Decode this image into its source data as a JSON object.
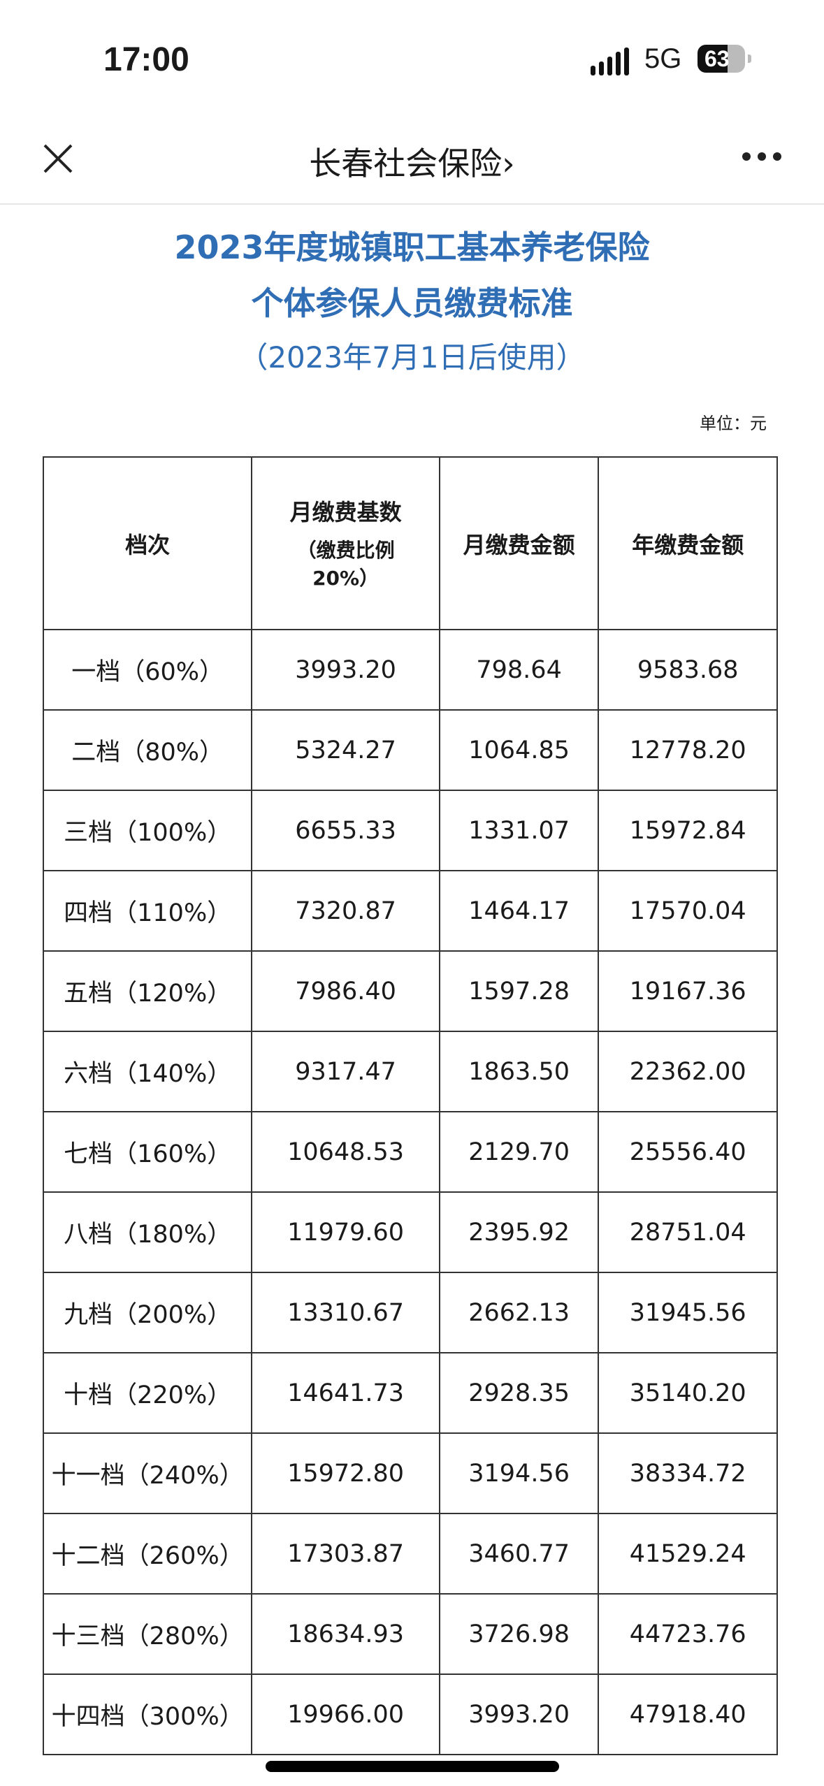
{
  "status_bar": {
    "time": "17:00",
    "network": "5G",
    "battery": "63",
    "battery_level": 0.63
  },
  "navbar": {
    "title": "长春社会保险",
    "chevron": "›",
    "close_icon": "close-icon",
    "more_icon": "more-icon"
  },
  "document": {
    "title_line1": "2023年度城镇职工基本养老保险",
    "title_line2": "个体参保人员缴费标准",
    "subtitle": "（2023年7月1日后使用）",
    "unit": "单位：元",
    "accent_color": "#2f6db5"
  },
  "table": {
    "headers": {
      "grade": "档次",
      "base": "月缴费基数",
      "base_note_1": "（缴费比例",
      "base_note_2": "20%）",
      "monthly": "月缴费金额",
      "yearly": "年缴费金额"
    },
    "rows": [
      [
        "一档（60%）",
        "3993.20",
        "798.64",
        "9583.68"
      ],
      [
        "二档（80%）",
        "5324.27",
        "1064.85",
        "12778.20"
      ],
      [
        "三档（100%）",
        "6655.33",
        "1331.07",
        "15972.84"
      ],
      [
        "四档（110%）",
        "7320.87",
        "1464.17",
        "17570.04"
      ],
      [
        "五档（120%）",
        "7986.40",
        "1597.28",
        "19167.36"
      ],
      [
        "六档（140%）",
        "9317.47",
        "1863.50",
        "22362.00"
      ],
      [
        "七档（160%）",
        "10648.53",
        "2129.70",
        "25556.40"
      ],
      [
        "八档（180%）",
        "11979.60",
        "2395.92",
        "28751.04"
      ],
      [
        "九档（200%）",
        "13310.67",
        "2662.13",
        "31945.56"
      ],
      [
        "十档（220%）",
        "14641.73",
        "2928.35",
        "35140.20"
      ],
      [
        "十一档（240%）",
        "15972.80",
        "3194.56",
        "38334.72"
      ],
      [
        "十二档（260%）",
        "17303.87",
        "3460.77",
        "41529.24"
      ],
      [
        "十三档（280%）",
        "18634.93",
        "3726.98",
        "44723.76"
      ],
      [
        "十四档（300%）",
        "19966.00",
        "3993.20",
        "47918.40"
      ]
    ]
  }
}
